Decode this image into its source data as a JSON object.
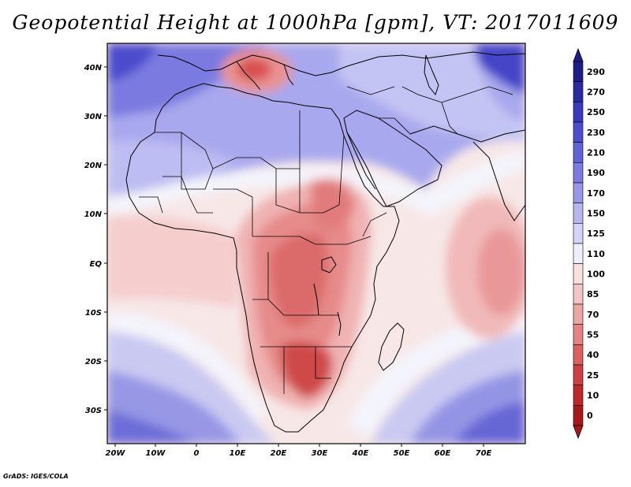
{
  "title": "Geopotential Height at 1000hPa [gpm], VT: 2017011609",
  "credit": "GrADS: IGES/COLA",
  "axes": {
    "lon_ticks": [
      "20W",
      "10W",
      "0",
      "10E",
      "20E",
      "30E",
      "40E",
      "50E",
      "60E",
      "70E"
    ],
    "lat_ticks": [
      "40N",
      "30N",
      "20N",
      "10N",
      "EQ",
      "10S",
      "20S",
      "30S"
    ]
  },
  "colorbar": {
    "levels": [
      "290",
      "270",
      "250",
      "230",
      "210",
      "190",
      "170",
      "150",
      "125",
      "110",
      "100",
      "85",
      "70",
      "55",
      "40",
      "25",
      "10",
      "0"
    ],
    "colors": [
      "#1d1d8a",
      "#2a2aa3",
      "#3a3abf",
      "#4d4dcf",
      "#6262d9",
      "#7b7be2",
      "#9898ea",
      "#b6b6f1",
      "#d4d4f7",
      "#efeffc",
      "#fbe0e0",
      "#f5c4c4",
      "#eea5a5",
      "#e58383",
      "#dc6060",
      "#d04040",
      "#c02828",
      "#a91818"
    ]
  },
  "map": {
    "unit": "gpm",
    "pressure_level": "1000hPa",
    "valid_time": "2017011609"
  }
}
